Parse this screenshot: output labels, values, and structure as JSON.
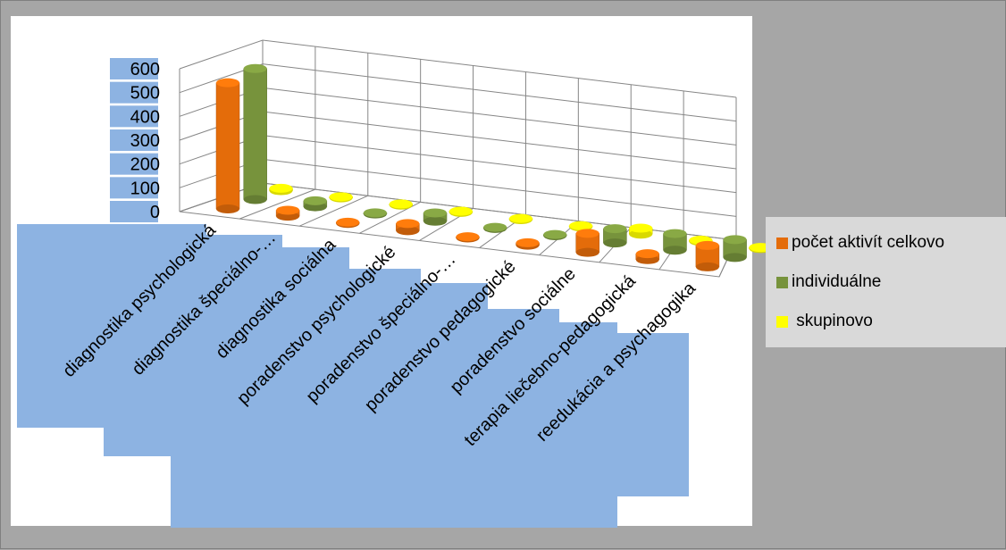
{
  "chart_data": {
    "type": "bar",
    "variant": "3d-cylinder",
    "title": "",
    "xlabel": "",
    "ylabel": "",
    "ylim": [
      0,
      600
    ],
    "yticks": [
      "0",
      "100",
      "200",
      "300",
      "400",
      "500",
      "600"
    ],
    "grid": true,
    "legend_position": "right",
    "categories": [
      "diagnostika psychologická",
      "diagnostika špeciálno-…",
      "diagnostika sociálna",
      "poradenstvo psychologické",
      "poradenstvo špeciálno-…",
      "poradenstvo pedagogické",
      "poradenstvo sociálne",
      "terapia liečebno-pedagogická",
      "reedukácia a psychagogika"
    ],
    "series": [
      {
        "name": "počet aktivít celkovo",
        "color": "#e46c0a",
        "values": [
          530,
          25,
          5,
          30,
          5,
          10,
          80,
          25,
          90
        ]
      },
      {
        "name": "individuálne",
        "color": "#77933c",
        "values": [
          550,
          25,
          5,
          35,
          5,
          5,
          60,
          70,
          75
        ]
      },
      {
        "name": " skupinovo",
        "color": "#ffff00",
        "values": [
          10,
          5,
          5,
          5,
          5,
          5,
          25,
          5,
          5
        ]
      }
    ]
  }
}
